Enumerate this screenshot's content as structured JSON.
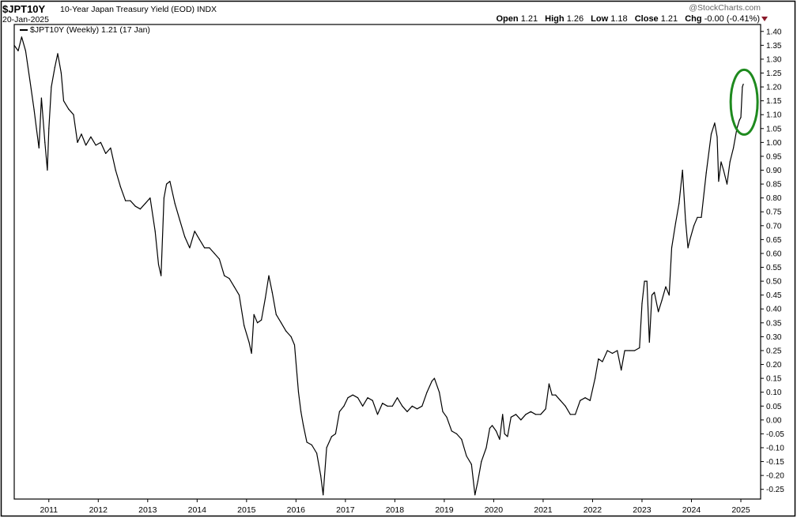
{
  "header": {
    "symbol": "$JPT10Y",
    "name": "10-Year Japan Treasury Yield (EOD)",
    "exchange": "INDX",
    "date": "20-Jan-2025",
    "brand": "@StockCharts.com",
    "ohlc": {
      "open_label": "Open",
      "open": "1.21",
      "high_label": "High",
      "high": "1.26",
      "low_label": "Low",
      "low": "1.18",
      "close_label": "Close",
      "close": "1.21",
      "chg_label": "Chg",
      "chg": "-0.00 (-0.41%)"
    }
  },
  "legend": {
    "text": "$JPT10Y (Weekly) 1.21 (17 Jan)"
  },
  "colors": {
    "line": "#000000",
    "highlight": "#1e8a1e",
    "caret": "#8b1a2a",
    "grid": "#000000"
  },
  "chart_data": {
    "type": "line",
    "title": "",
    "xlabel": "",
    "ylabel": "",
    "xlim": [
      2010.3,
      2025.4
    ],
    "ylim": [
      -0.285,
      1.425
    ],
    "x_ticks": [
      "2011",
      "2012",
      "2013",
      "2014",
      "2015",
      "2016",
      "2017",
      "2018",
      "2019",
      "2020",
      "2021",
      "2022",
      "2023",
      "2024",
      "2025"
    ],
    "y_ticks": [
      "1.40",
      "1.35",
      "1.30",
      "1.25",
      "1.20",
      "1.15",
      "1.10",
      "1.05",
      "1.00",
      "0.95",
      "0.90",
      "0.85",
      "0.80",
      "0.75",
      "0.70",
      "0.65",
      "0.60",
      "0.55",
      "0.50",
      "0.45",
      "0.40",
      "0.35",
      "0.30",
      "0.25",
      "0.20",
      "0.15",
      "0.10",
      "0.05",
      "0.00",
      "-0.05",
      "-0.10",
      "-0.15",
      "-0.20",
      "-0.25"
    ],
    "y_axis_position": "right",
    "legend_position": "top-left",
    "annotation": "green ellipse around latest values (2025)",
    "series": [
      {
        "name": "$JPT10Y (Weekly)",
        "points": [
          [
            2010.3,
            1.35
          ],
          [
            2010.38,
            1.33
          ],
          [
            2010.45,
            1.38
          ],
          [
            2010.53,
            1.33
          ],
          [
            2010.62,
            1.22
          ],
          [
            2010.7,
            1.12
          ],
          [
            2010.75,
            1.05
          ],
          [
            2010.8,
            0.98
          ],
          [
            2010.85,
            1.16
          ],
          [
            2010.92,
            1.0
          ],
          [
            2010.97,
            0.9
          ],
          [
            2011.0,
            1.05
          ],
          [
            2011.05,
            1.2
          ],
          [
            2011.12,
            1.27
          ],
          [
            2011.18,
            1.32
          ],
          [
            2011.25,
            1.25
          ],
          [
            2011.3,
            1.15
          ],
          [
            2011.4,
            1.12
          ],
          [
            2011.5,
            1.1
          ],
          [
            2011.58,
            1.0
          ],
          [
            2011.66,
            1.03
          ],
          [
            2011.75,
            0.99
          ],
          [
            2011.85,
            1.02
          ],
          [
            2011.95,
            0.99
          ],
          [
            2012.05,
            1.0
          ],
          [
            2012.15,
            0.96
          ],
          [
            2012.25,
            0.98
          ],
          [
            2012.35,
            0.9
          ],
          [
            2012.45,
            0.84
          ],
          [
            2012.55,
            0.79
          ],
          [
            2012.65,
            0.79
          ],
          [
            2012.75,
            0.77
          ],
          [
            2012.85,
            0.76
          ],
          [
            2012.95,
            0.78
          ],
          [
            2013.05,
            0.8
          ],
          [
            2013.15,
            0.68
          ],
          [
            2013.22,
            0.56
          ],
          [
            2013.27,
            0.52
          ],
          [
            2013.33,
            0.8
          ],
          [
            2013.38,
            0.85
          ],
          [
            2013.45,
            0.86
          ],
          [
            2013.55,
            0.78
          ],
          [
            2013.65,
            0.72
          ],
          [
            2013.75,
            0.66
          ],
          [
            2013.85,
            0.62
          ],
          [
            2013.95,
            0.68
          ],
          [
            2014.05,
            0.65
          ],
          [
            2014.15,
            0.62
          ],
          [
            2014.25,
            0.62
          ],
          [
            2014.35,
            0.6
          ],
          [
            2014.45,
            0.58
          ],
          [
            2014.55,
            0.52
          ],
          [
            2014.65,
            0.51
          ],
          [
            2014.75,
            0.48
          ],
          [
            2014.85,
            0.45
          ],
          [
            2014.95,
            0.34
          ],
          [
            2015.05,
            0.28
          ],
          [
            2015.1,
            0.24
          ],
          [
            2015.15,
            0.38
          ],
          [
            2015.22,
            0.35
          ],
          [
            2015.3,
            0.36
          ],
          [
            2015.38,
            0.44
          ],
          [
            2015.45,
            0.52
          ],
          [
            2015.52,
            0.46
          ],
          [
            2015.6,
            0.38
          ],
          [
            2015.7,
            0.35
          ],
          [
            2015.8,
            0.32
          ],
          [
            2015.9,
            0.3
          ],
          [
            2015.97,
            0.27
          ],
          [
            2016.05,
            0.1
          ],
          [
            2016.1,
            0.03
          ],
          [
            2016.15,
            -0.02
          ],
          [
            2016.22,
            -0.08
          ],
          [
            2016.32,
            -0.09
          ],
          [
            2016.42,
            -0.12
          ],
          [
            2016.5,
            -0.2
          ],
          [
            2016.55,
            -0.27
          ],
          [
            2016.62,
            -0.1
          ],
          [
            2016.72,
            -0.06
          ],
          [
            2016.8,
            -0.05
          ],
          [
            2016.88,
            0.03
          ],
          [
            2016.97,
            0.05
          ],
          [
            2017.05,
            0.08
          ],
          [
            2017.15,
            0.09
          ],
          [
            2017.25,
            0.08
          ],
          [
            2017.35,
            0.05
          ],
          [
            2017.45,
            0.08
          ],
          [
            2017.55,
            0.07
          ],
          [
            2017.65,
            0.02
          ],
          [
            2017.75,
            0.06
          ],
          [
            2017.85,
            0.05
          ],
          [
            2017.95,
            0.05
          ],
          [
            2018.05,
            0.08
          ],
          [
            2018.15,
            0.05
          ],
          [
            2018.25,
            0.03
          ],
          [
            2018.35,
            0.05
          ],
          [
            2018.45,
            0.04
          ],
          [
            2018.55,
            0.05
          ],
          [
            2018.65,
            0.1
          ],
          [
            2018.75,
            0.14
          ],
          [
            2018.8,
            0.15
          ],
          [
            2018.9,
            0.1
          ],
          [
            2018.97,
            0.03
          ],
          [
            2019.05,
            0.01
          ],
          [
            2019.15,
            -0.04
          ],
          [
            2019.25,
            -0.05
          ],
          [
            2019.35,
            -0.07
          ],
          [
            2019.45,
            -0.13
          ],
          [
            2019.55,
            -0.16
          ],
          [
            2019.62,
            -0.27
          ],
          [
            2019.68,
            -0.22
          ],
          [
            2019.75,
            -0.15
          ],
          [
            2019.85,
            -0.1
          ],
          [
            2019.92,
            -0.03
          ],
          [
            2019.97,
            -0.02
          ],
          [
            2020.05,
            -0.04
          ],
          [
            2020.12,
            -0.07
          ],
          [
            2020.18,
            0.02
          ],
          [
            2020.22,
            -0.05
          ],
          [
            2020.28,
            -0.06
          ],
          [
            2020.35,
            0.01
          ],
          [
            2020.45,
            0.02
          ],
          [
            2020.55,
            0.0
          ],
          [
            2020.65,
            0.02
          ],
          [
            2020.75,
            0.03
          ],
          [
            2020.85,
            0.02
          ],
          [
            2020.95,
            0.02
          ],
          [
            2021.05,
            0.04
          ],
          [
            2021.12,
            0.13
          ],
          [
            2021.18,
            0.09
          ],
          [
            2021.25,
            0.09
          ],
          [
            2021.35,
            0.07
          ],
          [
            2021.45,
            0.05
          ],
          [
            2021.55,
            0.02
          ],
          [
            2021.65,
            0.02
          ],
          [
            2021.75,
            0.07
          ],
          [
            2021.85,
            0.08
          ],
          [
            2021.95,
            0.07
          ],
          [
            2022.05,
            0.15
          ],
          [
            2022.12,
            0.22
          ],
          [
            2022.2,
            0.21
          ],
          [
            2022.3,
            0.25
          ],
          [
            2022.4,
            0.24
          ],
          [
            2022.5,
            0.25
          ],
          [
            2022.58,
            0.18
          ],
          [
            2022.65,
            0.25
          ],
          [
            2022.75,
            0.25
          ],
          [
            2022.85,
            0.25
          ],
          [
            2022.95,
            0.26
          ],
          [
            2023.0,
            0.42
          ],
          [
            2023.05,
            0.5
          ],
          [
            2023.1,
            0.5
          ],
          [
            2023.15,
            0.28
          ],
          [
            2023.2,
            0.45
          ],
          [
            2023.25,
            0.46
          ],
          [
            2023.33,
            0.39
          ],
          [
            2023.4,
            0.43
          ],
          [
            2023.48,
            0.48
          ],
          [
            2023.55,
            0.45
          ],
          [
            2023.6,
            0.62
          ],
          [
            2023.68,
            0.71
          ],
          [
            2023.75,
            0.78
          ],
          [
            2023.82,
            0.9
          ],
          [
            2023.88,
            0.72
          ],
          [
            2023.93,
            0.62
          ],
          [
            2023.97,
            0.65
          ],
          [
            2024.05,
            0.7
          ],
          [
            2024.12,
            0.73
          ],
          [
            2024.2,
            0.73
          ],
          [
            2024.3,
            0.89
          ],
          [
            2024.4,
            1.03
          ],
          [
            2024.47,
            1.07
          ],
          [
            2024.52,
            1.02
          ],
          [
            2024.55,
            0.86
          ],
          [
            2024.6,
            0.93
          ],
          [
            2024.65,
            0.9
          ],
          [
            2024.72,
            0.85
          ],
          [
            2024.78,
            0.93
          ],
          [
            2024.85,
            0.98
          ],
          [
            2024.92,
            1.05
          ],
          [
            2024.97,
            1.08
          ],
          [
            2025.0,
            1.09
          ],
          [
            2025.03,
            1.2
          ],
          [
            2025.05,
            1.21
          ]
        ]
      }
    ]
  }
}
